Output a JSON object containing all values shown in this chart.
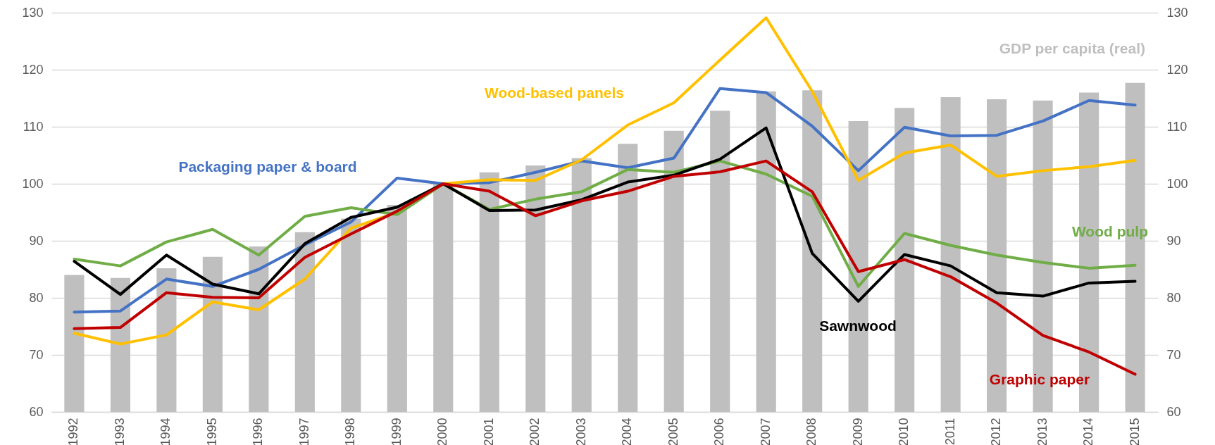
{
  "chart_data": {
    "type": "line",
    "categories": [
      "1992",
      "1993",
      "1994",
      "1995",
      "1996",
      "1997",
      "1998",
      "1999",
      "2000",
      "2001",
      "2002",
      "2003",
      "2004",
      "2005",
      "2006",
      "2007",
      "2008",
      "2009",
      "2010",
      "2011",
      "2012",
      "2013",
      "2014",
      "2015"
    ],
    "series": [
      {
        "name": "GDP per capita (real)",
        "type": "bar",
        "axis": "y2",
        "color": "#bfbfbf",
        "values": [
          84,
          83.5,
          85.2,
          87.2,
          89,
          91.5,
          93.9,
          96.3,
          100,
          102,
          103.2,
          104.5,
          107,
          109.3,
          112.8,
          116.2,
          116.4,
          111,
          113.3,
          115.2,
          114.8,
          114.6,
          116,
          117.7
        ]
      },
      {
        "name": "Packaging paper & board",
        "color": "#4472c4",
        "values": [
          77.5,
          77.7,
          83.3,
          82,
          85,
          89.3,
          93.3,
          101,
          100,
          100.2,
          102,
          104,
          102.8,
          104.5,
          116.7,
          116,
          110.1,
          102.3,
          109.9,
          108.4,
          108.5,
          111,
          114.6,
          113.8
        ]
      },
      {
        "name": "Wood-based panels",
        "color": "#ffc000",
        "values": [
          73.8,
          71.9,
          73.5,
          79.3,
          77.9,
          83.3,
          92.2,
          95,
          100,
          100.7,
          100.6,
          104.2,
          110.3,
          114.2,
          121.7,
          129.1,
          116.2,
          100.6,
          105.4,
          106.8,
          101.3,
          102.3,
          103,
          104.1
        ]
      },
      {
        "name": "Wood pulp",
        "color": "#70ad47",
        "values": [
          86.8,
          85.6,
          89.8,
          92,
          87.5,
          94.3,
          95.8,
          94.6,
          100,
          95.5,
          97.3,
          98.6,
          102.5,
          102,
          104,
          101.7,
          97.8,
          82,
          91.3,
          89.2,
          87.5,
          86.2,
          85.2,
          85.7
        ]
      },
      {
        "name": "Sawnwood",
        "color": "#000000",
        "values": [
          86.4,
          80.6,
          87.5,
          82.4,
          80.7,
          89.5,
          94.1,
          95.9,
          100,
          95.3,
          95.4,
          97.2,
          100.3,
          101.5,
          104.3,
          109.8,
          87.8,
          79.4,
          87.6,
          85.6,
          80.9,
          80.3,
          82.6,
          82.9
        ]
      },
      {
        "name": "Graphic paper",
        "color": "#c00000",
        "values": [
          74.6,
          74.8,
          80.9,
          80.1,
          80,
          87.1,
          91.2,
          95.2,
          100,
          98.7,
          94.4,
          97,
          98.7,
          101.3,
          102.1,
          104,
          98.6,
          84.6,
          86.7,
          83.7,
          79.1,
          73.4,
          70.5,
          66.6
        ]
      }
    ],
    "ylim": [
      60,
      130
    ],
    "yticks": [
      60,
      70,
      80,
      90,
      100,
      110,
      120,
      130
    ],
    "y2lim": [
      60,
      130
    ],
    "y2ticks": [
      60,
      70,
      80,
      90,
      100,
      110,
      120,
      130
    ],
    "grid": "y",
    "line_style": "solid",
    "marker": "none"
  }
}
